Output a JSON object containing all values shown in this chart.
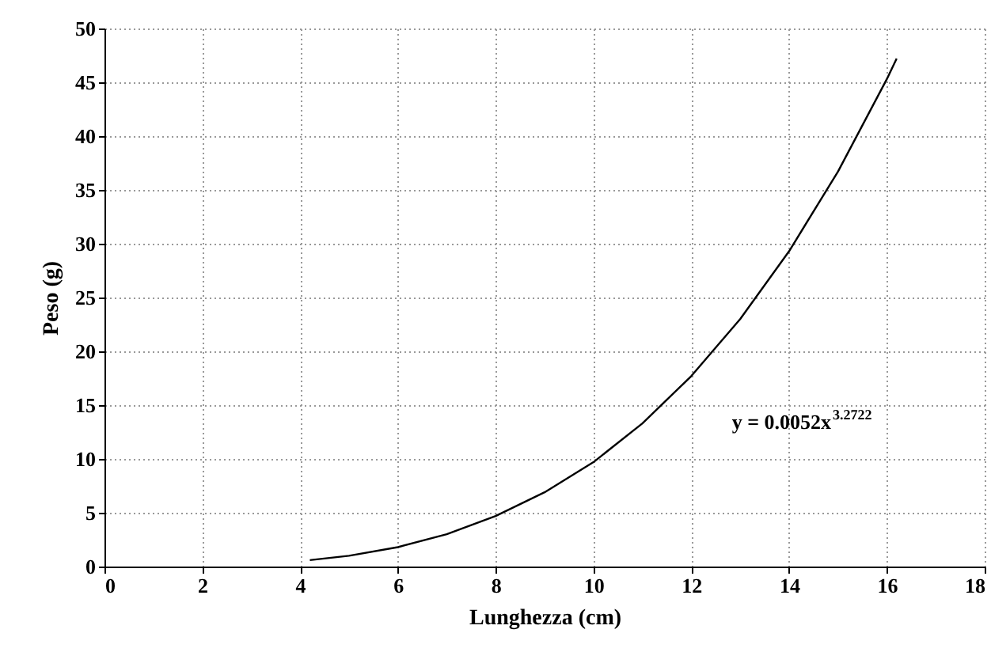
{
  "chart_data": {
    "type": "line",
    "xlabel": "Lunghezza (cm)",
    "ylabel": "Peso (g)",
    "x": [
      4.2,
      5,
      6,
      7,
      8,
      9,
      10,
      11,
      12,
      13,
      14,
      15,
      16,
      16.2
    ],
    "series": [
      {
        "color": "#000000",
        "values": [
          0.6,
          1.0,
          1.8,
          3.0,
          4.7,
          6.9,
          9.7,
          13.3,
          17.7,
          23.0,
          29.3,
          36.7,
          45.3,
          47.2
        ]
      }
    ],
    "xlim": [
      0,
      18
    ],
    "xticks": [
      0,
      2,
      4,
      6,
      8,
      10,
      12,
      14,
      16,
      18
    ],
    "ylim": [
      0,
      50
    ],
    "yticks": [
      0,
      5,
      10,
      15,
      20,
      25,
      30,
      35,
      40,
      45,
      50
    ],
    "grid": true,
    "marker": "none",
    "line_style": "solid",
    "annotations": [
      "y = 0.0052x$^{3.2722}$"
    ]
  }
}
